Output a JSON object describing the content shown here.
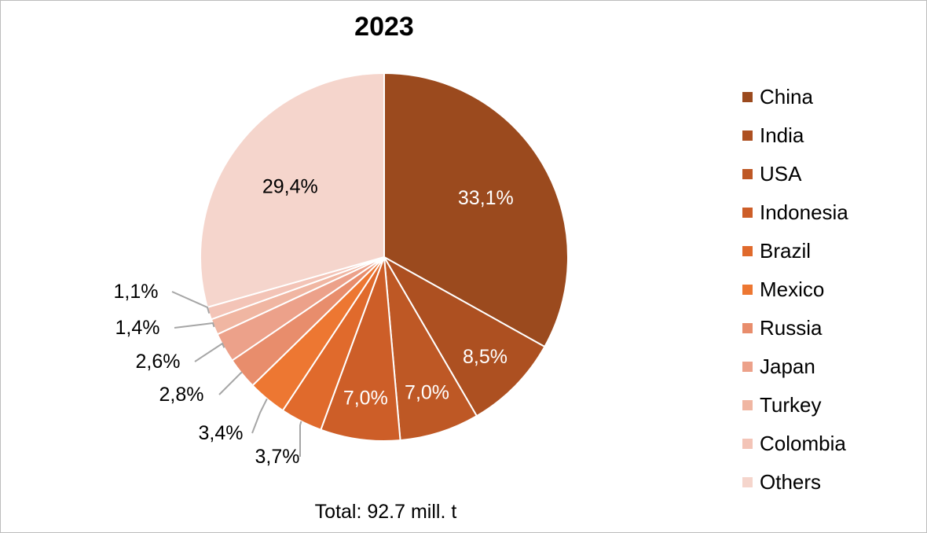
{
  "chart_data": {
    "type": "pie",
    "title": "2023",
    "footer": "Total: 92.7 mill. t",
    "slices": [
      {
        "label": "China",
        "value": 33.1,
        "display": "33,1%",
        "color": "#9b4a1e"
      },
      {
        "label": "India",
        "value": 8.5,
        "display": "8,5%",
        "color": "#ad5021"
      },
      {
        "label": "USA",
        "value": 7.0,
        "display": "7,0%",
        "color": "#be5825"
      },
      {
        "label": "Indonesia",
        "value": 7.0,
        "display": "7,0%",
        "color": "#cd5e28"
      },
      {
        "label": "Brazil",
        "value": 3.7,
        "display": "3,7%",
        "color": "#e06a2c"
      },
      {
        "label": "Mexico",
        "value": 3.4,
        "display": "3,4%",
        "color": "#ed7732"
      },
      {
        "label": "Russia",
        "value": 2.8,
        "display": "2,8%",
        "color": "#e88d6c"
      },
      {
        "label": "Japan",
        "value": 2.6,
        "display": "2,6%",
        "color": "#eca18a"
      },
      {
        "label": "Turkey",
        "value": 1.4,
        "display": "1,4%",
        "color": "#f0b6a2"
      },
      {
        "label": "Colombia",
        "value": 1.1,
        "display": "1,1%",
        "color": "#f3c4b7"
      },
      {
        "label": "Others",
        "value": 29.4,
        "display": "29,4%",
        "color": "#f5d5cc"
      }
    ],
    "legend_position": "right"
  }
}
